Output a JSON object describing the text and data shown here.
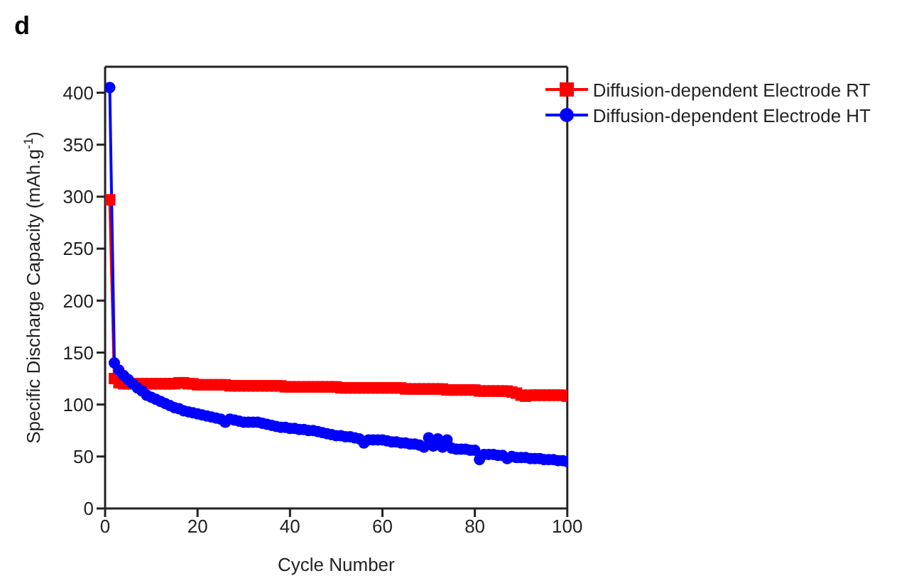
{
  "chart_data": {
    "type": "line",
    "title": "d",
    "xlabel": "Cycle Number",
    "ylabel": "Specific Discharge Capacity (mAh.g$^{-1}$)",
    "x": [
      1,
      2,
      3,
      4,
      5,
      6,
      7,
      8,
      9,
      10,
      11,
      12,
      13,
      14,
      15,
      16,
      17,
      18,
      19,
      20,
      21,
      22,
      23,
      24,
      25,
      26,
      27,
      28,
      29,
      30,
      31,
      32,
      33,
      34,
      35,
      36,
      37,
      38,
      39,
      40,
      41,
      42,
      43,
      44,
      45,
      46,
      47,
      48,
      49,
      50,
      51,
      52,
      53,
      54,
      55,
      56,
      57,
      58,
      59,
      60,
      61,
      62,
      63,
      64,
      65,
      66,
      67,
      68,
      69,
      70,
      71,
      72,
      73,
      74,
      75,
      76,
      77,
      78,
      79,
      80,
      81,
      82,
      83,
      84,
      85,
      86,
      87,
      88,
      89,
      90,
      91,
      92,
      93,
      94,
      95,
      96,
      97,
      98,
      99,
      100
    ],
    "series": [
      {
        "name": "Diffusion-dependent Electrode RT",
        "color": "#ff0000",
        "marker": "square",
        "values": [
          297,
          125,
          121,
          120,
          120,
          120,
          120,
          120,
          120,
          120,
          120,
          120,
          120,
          120,
          120,
          121,
          121,
          120,
          120,
          119,
          119,
          119,
          119,
          119,
          119,
          119,
          118,
          118,
          118,
          118,
          118,
          118,
          118,
          118,
          118,
          118,
          118,
          118,
          117,
          117,
          117,
          117,
          117,
          117,
          117,
          117,
          117,
          117,
          117,
          117,
          116,
          116,
          116,
          116,
          116,
          116,
          116,
          116,
          116,
          116,
          116,
          116,
          116,
          116,
          115,
          115,
          115,
          115,
          115,
          115,
          115,
          115,
          115,
          114,
          114,
          114,
          114,
          114,
          114,
          114,
          113,
          113,
          113,
          113,
          113,
          113,
          113,
          112,
          111,
          109,
          108,
          109,
          109,
          109,
          109,
          109,
          109,
          109,
          109,
          108
        ]
      },
      {
        "name": "Diffusion-dependent Electrode HT",
        "color": "#0000ff",
        "marker": "circle",
        "values": [
          405,
          140,
          133,
          128,
          124,
          120,
          116,
          113,
          109,
          107,
          105,
          103,
          101,
          99,
          97,
          96,
          94,
          93,
          92,
          91,
          90,
          89,
          88,
          87,
          86,
          83,
          86,
          85,
          84,
          83,
          83,
          83,
          83,
          82,
          81,
          80,
          79,
          78,
          78,
          77,
          77,
          76,
          76,
          75,
          75,
          74,
          73,
          72,
          71,
          70,
          70,
          69,
          69,
          68,
          67,
          63,
          66,
          66,
          66,
          66,
          65,
          64,
          64,
          63,
          63,
          62,
          62,
          61,
          59,
          68,
          60,
          67,
          59,
          66,
          58,
          57,
          57,
          57,
          56,
          56,
          47,
          52,
          52,
          52,
          51,
          51,
          48,
          50,
          49,
          49,
          49,
          48,
          48,
          48,
          47,
          47,
          47,
          46,
          46,
          45
        ]
      }
    ],
    "xlim": [
      0,
      100
    ],
    "xticks": [
      0,
      20,
      40,
      60,
      80,
      100
    ],
    "ylim": [
      0,
      425
    ],
    "yticks": [
      0,
      50,
      100,
      150,
      200,
      250,
      300,
      350,
      400
    ],
    "grid": false,
    "legend": "top right",
    "line_style": "solid"
  }
}
